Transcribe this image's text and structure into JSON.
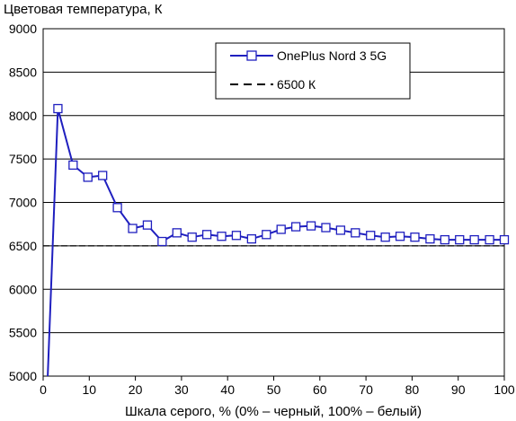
{
  "chart_data": {
    "type": "line",
    "title": "",
    "ylabel": "Цветовая температура, К",
    "xlabel": "Шкала серого, % (0% – черный, 100% – белый)",
    "xlim": [
      0,
      100
    ],
    "ylim": [
      5000,
      9000
    ],
    "xticks": [
      0,
      10,
      20,
      30,
      40,
      50,
      60,
      70,
      80,
      90,
      100
    ],
    "yticks": [
      5000,
      5500,
      6000,
      6500,
      7000,
      7500,
      8000,
      8500,
      9000
    ],
    "grid": "horizontal",
    "legend_position": "top-right",
    "series": [
      {
        "name": "OnePlus Nord 3 5G",
        "color": "#1f1fbf",
        "marker": "open-square",
        "points": [
          [
            1.0,
            5000
          ],
          [
            3.2,
            8080
          ],
          [
            6.5,
            7430
          ],
          [
            9.7,
            7290
          ],
          [
            12.9,
            7310
          ],
          [
            16.1,
            6940
          ],
          [
            19.4,
            6700
          ],
          [
            22.6,
            6740
          ],
          [
            25.8,
            6550
          ],
          [
            29.0,
            6650
          ],
          [
            32.3,
            6600
          ],
          [
            35.5,
            6630
          ],
          [
            38.7,
            6610
          ],
          [
            41.9,
            6620
          ],
          [
            45.2,
            6580
          ],
          [
            48.4,
            6630
          ],
          [
            51.6,
            6690
          ],
          [
            54.8,
            6720
          ],
          [
            58.1,
            6730
          ],
          [
            61.3,
            6710
          ],
          [
            64.5,
            6680
          ],
          [
            67.7,
            6650
          ],
          [
            71.0,
            6620
          ],
          [
            74.2,
            6600
          ],
          [
            77.4,
            6610
          ],
          [
            80.6,
            6600
          ],
          [
            83.9,
            6580
          ],
          [
            87.1,
            6570
          ],
          [
            90.3,
            6570
          ],
          [
            93.5,
            6570
          ],
          [
            96.8,
            6570
          ],
          [
            100.0,
            6570
          ]
        ]
      },
      {
        "name": "6500 К",
        "color": "#000000",
        "style": "dashed",
        "points": [
          [
            0,
            6500
          ],
          [
            100,
            6500
          ]
        ]
      }
    ]
  }
}
